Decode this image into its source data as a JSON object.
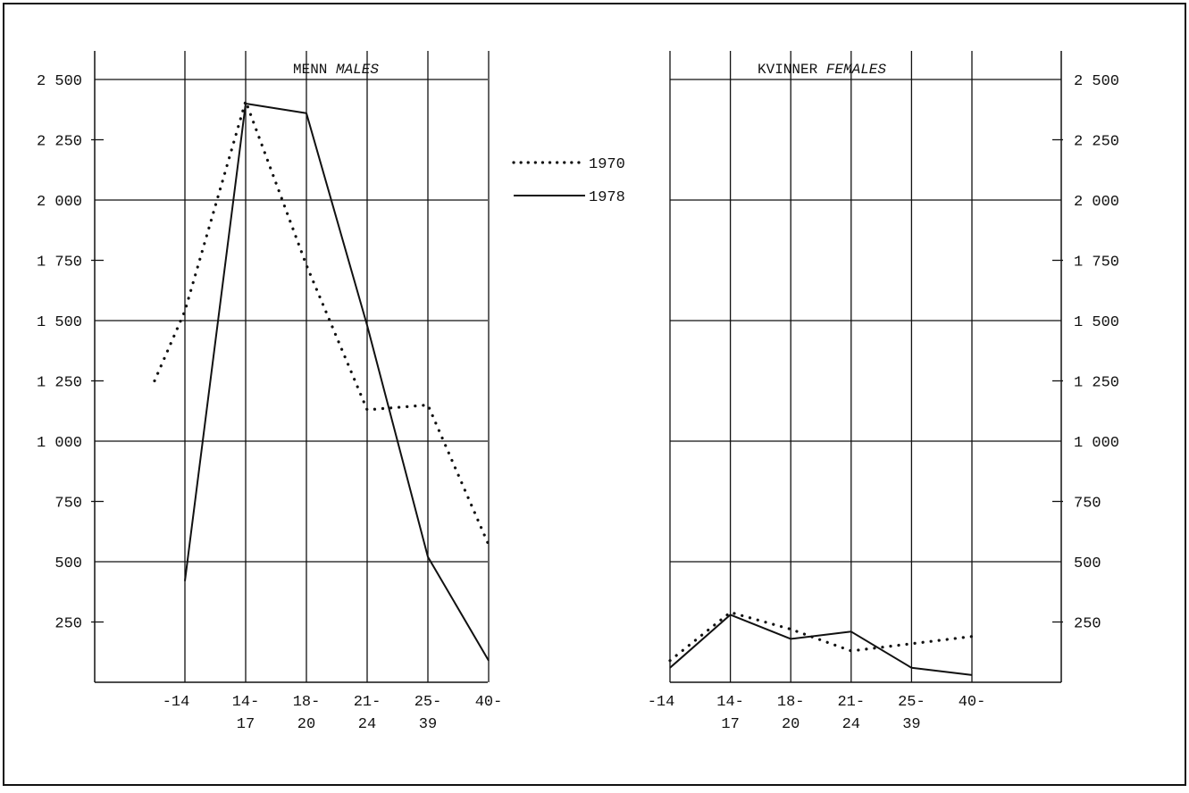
{
  "chart_data": [
    {
      "type": "line",
      "title": "MENN",
      "subtitle": "MALES",
      "categories": [
        "-14",
        "14-\n17",
        "18-\n20",
        "21-\n24",
        "25-\n39",
        "40-"
      ],
      "ylim": [
        0,
        2500
      ],
      "yticks": [
        "2 500",
        "2 250",
        "2 000",
        "1 750",
        "1 500",
        "1 250",
        "1 000",
        "750",
        "500",
        "250"
      ],
      "grid": true,
      "series": [
        {
          "name": "1970",
          "style": "dotted",
          "points": [
            [
              -0.5,
              1250
            ],
            [
              0,
              1540
            ],
            [
              1,
              2410
            ],
            [
              2,
              1730
            ],
            [
              3,
              1130
            ],
            [
              4,
              1150
            ],
            [
              5,
              570
            ]
          ]
        },
        {
          "name": "1978",
          "style": "solid",
          "points": [
            [
              0,
              420
            ],
            [
              1,
              2400
            ],
            [
              2,
              2360
            ],
            [
              3,
              1480
            ],
            [
              4,
              520
            ],
            [
              5,
              90
            ]
          ]
        }
      ]
    },
    {
      "type": "line",
      "title": "KVINNER",
      "subtitle": "FEMALES",
      "categories": [
        "-14",
        "14-\n17",
        "18-\n20",
        "21-\n24",
        "25-\n39",
        "40-"
      ],
      "ylim": [
        0,
        2500
      ],
      "yticks": [
        "2 500",
        "2 250",
        "2 000",
        "1 750",
        "1 500",
        "1 250",
        "1 000",
        "750",
        "500",
        "250"
      ],
      "grid": true,
      "series": [
        {
          "name": "1970",
          "style": "dotted",
          "points": [
            [
              0,
              90
            ],
            [
              1,
              290
            ],
            [
              2,
              220
            ],
            [
              3,
              130
            ],
            [
              4,
              160
            ],
            [
              5,
              190
            ]
          ]
        },
        {
          "name": "1978",
          "style": "solid",
          "points": [
            [
              0,
              60
            ],
            [
              1,
              280
            ],
            [
              2,
              180
            ],
            [
              3,
              210
            ],
            [
              4,
              60
            ],
            [
              5,
              30
            ]
          ]
        }
      ]
    }
  ],
  "legend": [
    {
      "label": "1970",
      "style": "dotted"
    },
    {
      "label": "1978",
      "style": "solid"
    }
  ],
  "legend_position": "center-top"
}
